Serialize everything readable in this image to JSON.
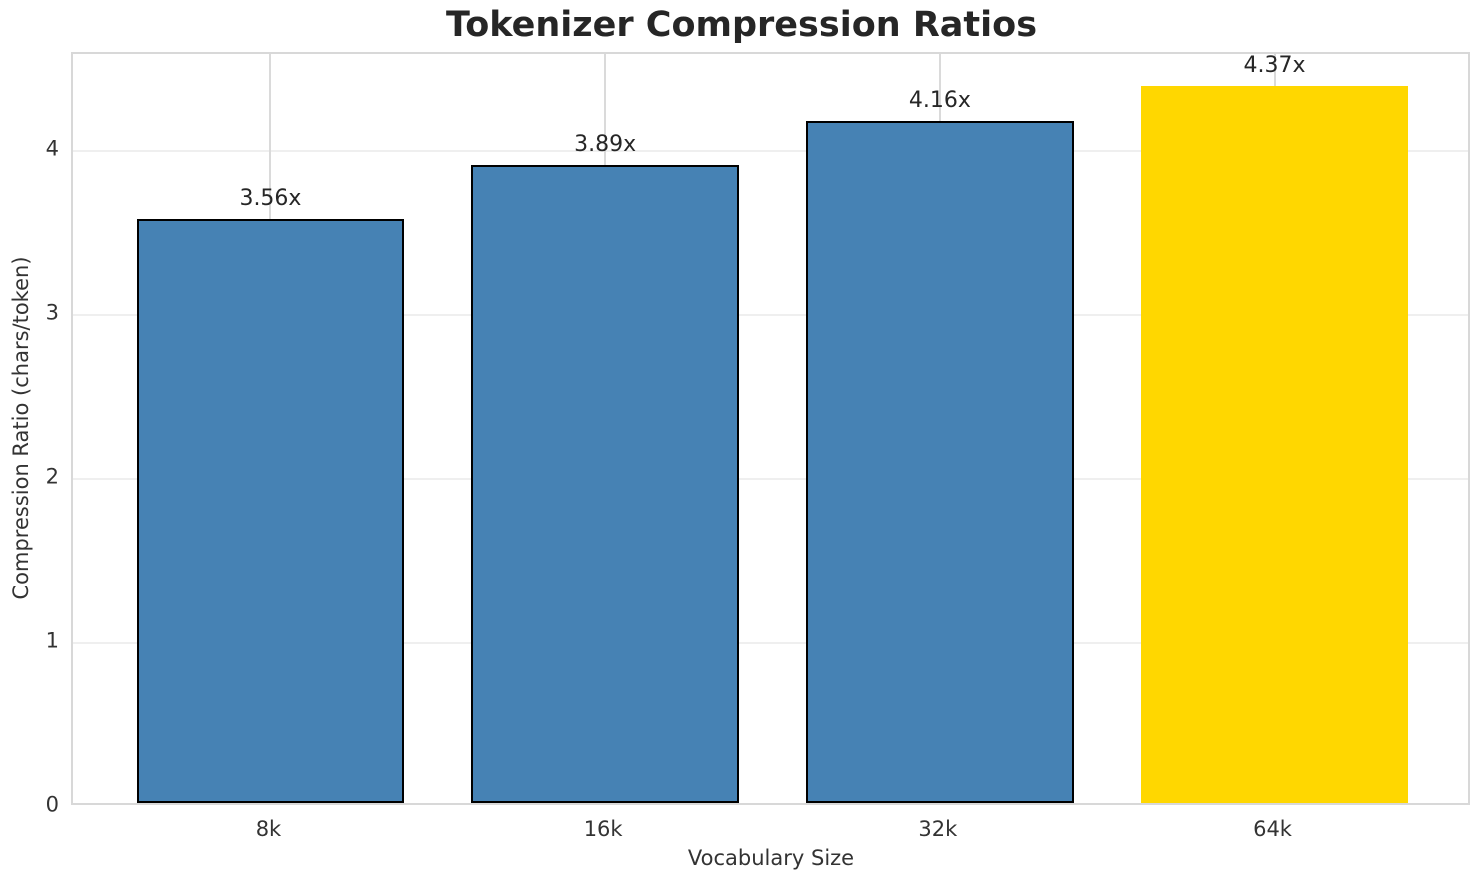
{
  "chart_data": {
    "type": "bar",
    "title": "Tokenizer Compression Ratios",
    "xlabel": "Vocabulary Size",
    "ylabel": "Compression Ratio (chars/token)",
    "categories": [
      "8k",
      "16k",
      "32k",
      "64k"
    ],
    "values": [
      3.56,
      3.89,
      4.16,
      4.37
    ],
    "value_labels": [
      "3.56x",
      "3.89x",
      "4.16x",
      "4.37x"
    ],
    "yticks": [
      0,
      1,
      2,
      3,
      4
    ],
    "ylim": [
      0,
      4.59
    ],
    "grid": "both",
    "legend": "none",
    "bar_colors": [
      "#4682b4",
      "#4682b4",
      "#4682b4",
      "#ffd700"
    ],
    "bar_edge_colors": [
      "#000000",
      "#000000",
      "#000000",
      "none"
    ],
    "colors": {
      "title_text": "#262626",
      "tick_text": "#333333",
      "axis_label_text": "#333333",
      "value_label_text": "#262626",
      "spine": "#d8d8d8",
      "grid_horizontal": "#efefef",
      "grid_vertical": "#dadada",
      "background": "#ffffff",
      "bar_default": "#4682b4",
      "bar_highlight": "#ffd700"
    }
  }
}
